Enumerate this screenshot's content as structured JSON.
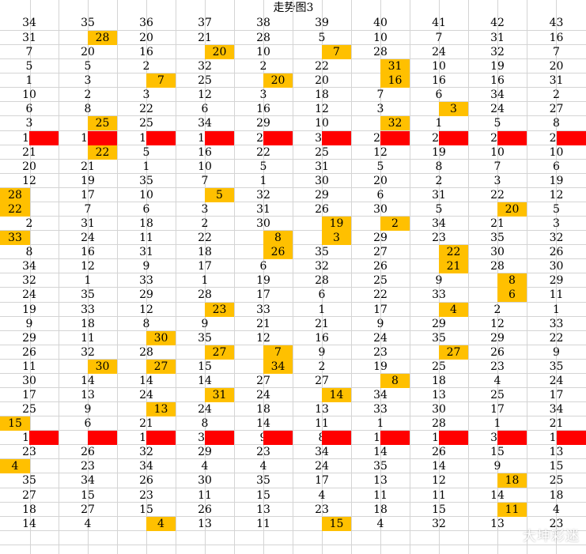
{
  "title": "走势图3",
  "headers": [
    "34",
    "35",
    "36",
    "37",
    "38",
    "39",
    "40",
    "41",
    "42",
    "43"
  ],
  "highlight_color": "#ffc000",
  "separator_color": "#ff0000",
  "separator_rows": [
    7,
    28
  ],
  "rows": [
    [
      "31",
      "28",
      "20",
      "21",
      "28",
      "5",
      "10",
      "7",
      "31",
      "16"
    ],
    [
      "7",
      "20",
      "16",
      "20",
      "10",
      "7",
      "28",
      "24",
      "32",
      "7"
    ],
    [
      "5",
      "5",
      "2",
      "32",
      "2",
      "22",
      "31",
      "10",
      "19",
      "20"
    ],
    [
      "1",
      "3",
      "7",
      "25",
      "20",
      "20",
      "16",
      "16",
      "16",
      "31"
    ],
    [
      "10",
      "2",
      "3",
      "12",
      "3",
      "18",
      "7",
      "6",
      "34",
      "2"
    ],
    [
      "6",
      "8",
      "22",
      "6",
      "16",
      "12",
      "3",
      "3",
      "24",
      "27"
    ],
    [
      "3",
      "25",
      "25",
      "34",
      "29",
      "10",
      "32",
      "1",
      "5",
      "8"
    ],
    [
      "16",
      "10",
      "19",
      "19",
      "25",
      "33",
      "21",
      "20",
      "27",
      "28"
    ],
    [
      "21",
      "22",
      "5",
      "16",
      "22",
      "25",
      "12",
      "19",
      "10",
      "10"
    ],
    [
      "20",
      "21",
      "1",
      "10",
      "5",
      "31",
      "5",
      "8",
      "7",
      "6"
    ],
    [
      "12",
      "19",
      "35",
      "7",
      "1",
      "30",
      "20",
      "2",
      "3",
      "19"
    ],
    [
      "28",
      "17",
      "10",
      "5",
      "32",
      "29",
      "6",
      "31",
      "22",
      "12"
    ],
    [
      "22",
      "7",
      "6",
      "3",
      "31",
      "26",
      "30",
      "5",
      "20",
      "5"
    ],
    [
      "2",
      "31",
      "18",
      "2",
      "30",
      "19",
      "2",
      "34",
      "21",
      "3"
    ],
    [
      "33",
      "24",
      "11",
      "22",
      "8",
      "3",
      "29",
      "23",
      "35",
      "32"
    ],
    [
      "8",
      "16",
      "31",
      "18",
      "26",
      "35",
      "27",
      "22",
      "30",
      "26"
    ],
    [
      "34",
      "12",
      "9",
      "17",
      "6",
      "32",
      "26",
      "21",
      "28",
      "30"
    ],
    [
      "32",
      "1",
      "33",
      "1",
      "19",
      "28",
      "25",
      "9",
      "8",
      "29"
    ],
    [
      "24",
      "35",
      "29",
      "28",
      "17",
      "6",
      "22",
      "33",
      "6",
      "11"
    ],
    [
      "19",
      "33",
      "12",
      "23",
      "33",
      "1",
      "17",
      "4",
      "2",
      "1"
    ],
    [
      "9",
      "18",
      "8",
      "9",
      "21",
      "21",
      "9",
      "29",
      "12",
      "33"
    ],
    [
      "29",
      "11",
      "30",
      "35",
      "12",
      "16",
      "24",
      "35",
      "29",
      "22"
    ],
    [
      "26",
      "32",
      "28",
      "27",
      "7",
      "9",
      "23",
      "27",
      "26",
      "9"
    ],
    [
      "11",
      "30",
      "27",
      "15",
      "34",
      "2",
      "19",
      "25",
      "23",
      "35"
    ],
    [
      "30",
      "14",
      "14",
      "14",
      "27",
      "27",
      "8",
      "18",
      "4",
      "24"
    ],
    [
      "17",
      "13",
      "24",
      "31",
      "24",
      "14",
      "34",
      "13",
      "25",
      "17"
    ],
    [
      "25",
      "9",
      "13",
      "24",
      "18",
      "13",
      "33",
      "30",
      "17",
      "34"
    ],
    [
      "15",
      "6",
      "21",
      "8",
      "14",
      "11",
      "1",
      "28",
      "1",
      "21"
    ],
    [
      "13",
      "29",
      "17",
      "33",
      "9",
      "8",
      "15",
      "17",
      "33",
      "14"
    ],
    [
      "23",
      "26",
      "32",
      "29",
      "23",
      "34",
      "14",
      "26",
      "15",
      "13"
    ],
    [
      "4",
      "23",
      "34",
      "4",
      "4",
      "24",
      "35",
      "14",
      "9",
      "15"
    ],
    [
      "35",
      "34",
      "26",
      "30",
      "35",
      "17",
      "13",
      "12",
      "18",
      "25"
    ],
    [
      "27",
      "15",
      "23",
      "11",
      "15",
      "4",
      "11",
      "11",
      "14",
      "18"
    ],
    [
      "18",
      "27",
      "15",
      "26",
      "13",
      "23",
      "18",
      "15",
      "11",
      "4"
    ],
    [
      "14",
      "4",
      "4",
      "13",
      "11",
      "15",
      "4",
      "32",
      "13",
      "23"
    ]
  ],
  "highlights": [
    [
      0,
      1
    ],
    [
      1,
      3
    ],
    [
      1,
      5
    ],
    [
      2,
      6
    ],
    [
      3,
      2
    ],
    [
      3,
      4
    ],
    [
      3,
      6
    ],
    [
      5,
      7
    ],
    [
      6,
      1
    ],
    [
      6,
      6
    ],
    [
      8,
      1
    ],
    [
      11,
      0
    ],
    [
      11,
      3
    ],
    [
      12,
      0
    ],
    [
      12,
      8
    ],
    [
      13,
      5
    ],
    [
      13,
      6
    ],
    [
      14,
      0
    ],
    [
      14,
      4
    ],
    [
      14,
      5
    ],
    [
      15,
      4
    ],
    [
      15,
      7
    ],
    [
      16,
      7
    ],
    [
      17,
      8
    ],
    [
      18,
      8
    ],
    [
      19,
      3
    ],
    [
      19,
      7
    ],
    [
      21,
      2
    ],
    [
      22,
      3
    ],
    [
      22,
      4
    ],
    [
      22,
      7
    ],
    [
      23,
      1
    ],
    [
      23,
      2
    ],
    [
      23,
      4
    ],
    [
      24,
      6
    ],
    [
      25,
      3
    ],
    [
      25,
      5
    ],
    [
      26,
      2
    ],
    [
      27,
      0
    ],
    [
      28,
      1
    ],
    [
      30,
      0
    ],
    [
      31,
      8
    ],
    [
      33,
      8
    ],
    [
      34,
      2
    ],
    [
      34,
      5
    ]
  ],
  "watermark": "大坤彩迷"
}
